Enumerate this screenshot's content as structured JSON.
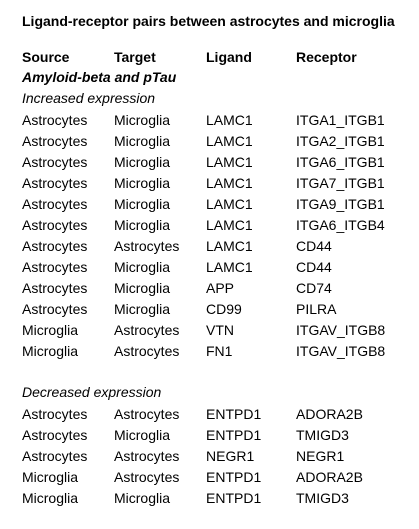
{
  "title": "Ligand-receptor pairs between astrocytes and microglia",
  "columns": [
    "Source",
    "Target",
    "Ligand",
    "Receptor"
  ],
  "section": "Amyloid-beta and pTau",
  "groups": [
    {
      "label": "Increased expression",
      "rows": [
        [
          "Astrocytes",
          "Microglia",
          "LAMC1",
          "ITGA1_ITGB1"
        ],
        [
          "Astrocytes",
          "Microglia",
          "LAMC1",
          "ITGA2_ITGB1"
        ],
        [
          "Astrocytes",
          "Microglia",
          "LAMC1",
          "ITGA6_ITGB1"
        ],
        [
          "Astrocytes",
          "Microglia",
          "LAMC1",
          "ITGA7_ITGB1"
        ],
        [
          "Astrocytes",
          "Microglia",
          "LAMC1",
          "ITGA9_ITGB1"
        ],
        [
          "Astrocytes",
          "Microglia",
          "LAMC1",
          "ITGA6_ITGB4"
        ],
        [
          "Astrocytes",
          "Astrocytes",
          "LAMC1",
          "CD44"
        ],
        [
          "Astrocytes",
          "Microglia",
          "LAMC1",
          "CD44"
        ],
        [
          "Astrocytes",
          "Microglia",
          "APP",
          "CD74"
        ],
        [
          "Astrocytes",
          "Microglia",
          "CD99",
          "PILRA"
        ],
        [
          "Microglia",
          "Astrocytes",
          "VTN",
          "ITGAV_ITGB8"
        ],
        [
          "Microglia",
          "Astrocytes",
          "FN1",
          "ITGAV_ITGB8"
        ]
      ]
    },
    {
      "label": "Decreased expression",
      "rows": [
        [
          "Astrocytes",
          "Astrocytes",
          "ENTPD1",
          "ADORA2B"
        ],
        [
          "Astrocytes",
          "Microglia",
          "ENTPD1",
          "TMIGD3"
        ],
        [
          "Astrocytes",
          "Astrocytes",
          "NEGR1",
          "NEGR1"
        ],
        [
          "Microglia",
          "Astrocytes",
          "ENTPD1",
          "ADORA2B"
        ],
        [
          "Microglia",
          "Microglia",
          "ENTPD1",
          "TMIGD3"
        ]
      ]
    }
  ]
}
